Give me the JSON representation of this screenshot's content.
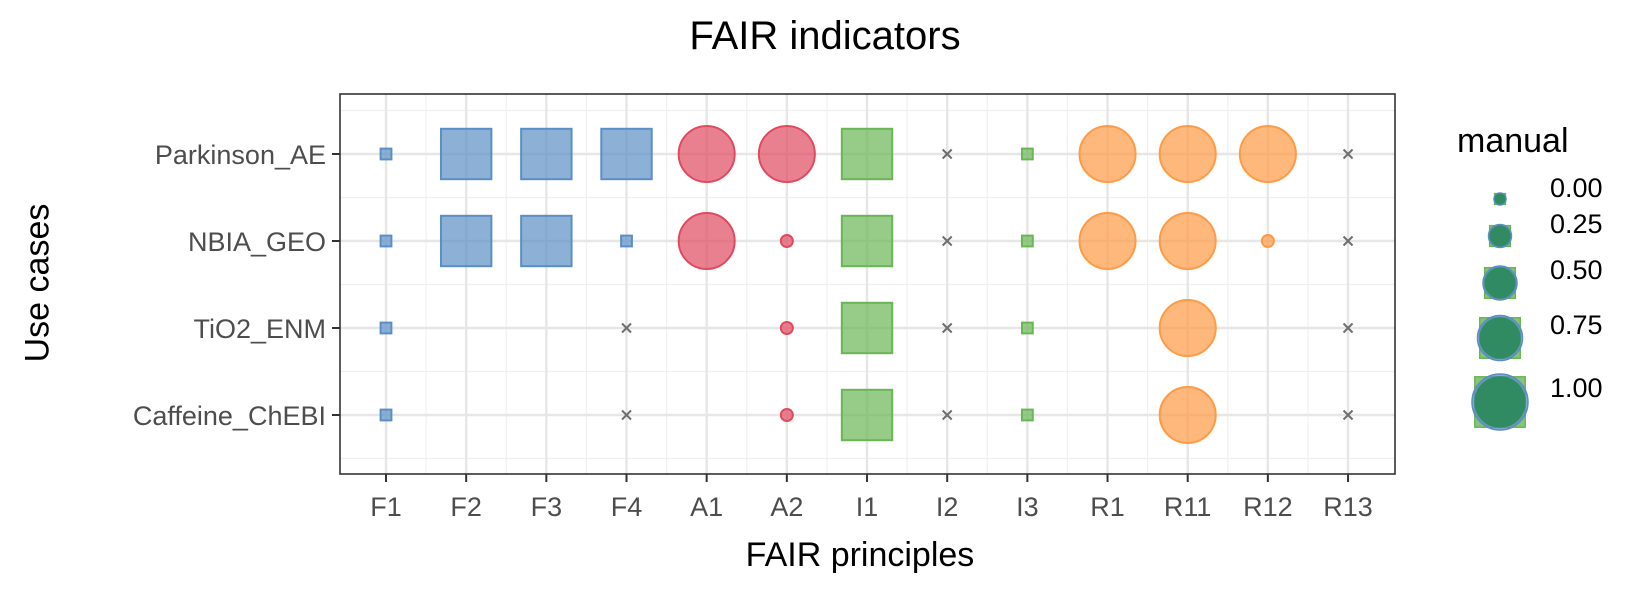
{
  "chart_data": {
    "type": "scatter",
    "title": "FAIR indicators",
    "xlabel": "FAIR principles",
    "ylabel": "Use cases",
    "categories_x": [
      "F1",
      "F2",
      "F3",
      "F4",
      "A1",
      "A2",
      "I1",
      "I2",
      "I3",
      "R1",
      "R11",
      "R12",
      "R13"
    ],
    "categories_y": [
      "Parkinson_AE",
      "NBIA_GEO",
      "TiO2_ENM",
      "Caffeine_ChEBI"
    ],
    "size_legend": {
      "title": "manual",
      "values": [
        "0.00",
        "0.25",
        "0.50",
        "0.75",
        "1.00"
      ]
    },
    "groups": {
      "F": {
        "shape": "square",
        "color": "#5B8EC4"
      },
      "A": {
        "shape": "circle",
        "color": "#E04A5F"
      },
      "I": {
        "shape": "square",
        "color": "#6AB556"
      },
      "R": {
        "shape": "circle",
        "color": "#FF9A45"
      },
      "none": {
        "shape": "cross",
        "color": "#6E6E6E"
      }
    },
    "points": [
      {
        "x": "F1",
        "y": "Parkinson_AE",
        "value": 0.0,
        "group": "F"
      },
      {
        "x": "F2",
        "y": "Parkinson_AE",
        "value": 1.0,
        "group": "F"
      },
      {
        "x": "F3",
        "y": "Parkinson_AE",
        "value": 1.0,
        "group": "F"
      },
      {
        "x": "F4",
        "y": "Parkinson_AE",
        "value": 1.0,
        "group": "F"
      },
      {
        "x": "A1",
        "y": "Parkinson_AE",
        "value": 1.0,
        "group": "A"
      },
      {
        "x": "A2",
        "y": "Parkinson_AE",
        "value": 1.0,
        "group": "A"
      },
      {
        "x": "I1",
        "y": "Parkinson_AE",
        "value": 1.0,
        "group": "I"
      },
      {
        "x": "I2",
        "y": "Parkinson_AE",
        "value": null,
        "group": "none"
      },
      {
        "x": "I3",
        "y": "Parkinson_AE",
        "value": 0.0,
        "group": "I"
      },
      {
        "x": "R1",
        "y": "Parkinson_AE",
        "value": 1.0,
        "group": "R"
      },
      {
        "x": "R11",
        "y": "Parkinson_AE",
        "value": 1.0,
        "group": "R"
      },
      {
        "x": "R12",
        "y": "Parkinson_AE",
        "value": 1.0,
        "group": "R"
      },
      {
        "x": "R13",
        "y": "Parkinson_AE",
        "value": null,
        "group": "none"
      },
      {
        "x": "F1",
        "y": "NBIA_GEO",
        "value": 0.0,
        "group": "F"
      },
      {
        "x": "F2",
        "y": "NBIA_GEO",
        "value": 1.0,
        "group": "F"
      },
      {
        "x": "F3",
        "y": "NBIA_GEO",
        "value": 1.0,
        "group": "F"
      },
      {
        "x": "F4",
        "y": "NBIA_GEO",
        "value": 0.0,
        "group": "F"
      },
      {
        "x": "A1",
        "y": "NBIA_GEO",
        "value": 1.0,
        "group": "A"
      },
      {
        "x": "A2",
        "y": "NBIA_GEO",
        "value": 0.0,
        "group": "A"
      },
      {
        "x": "I1",
        "y": "NBIA_GEO",
        "value": 1.0,
        "group": "I"
      },
      {
        "x": "I2",
        "y": "NBIA_GEO",
        "value": null,
        "group": "none"
      },
      {
        "x": "I3",
        "y": "NBIA_GEO",
        "value": 0.0,
        "group": "I"
      },
      {
        "x": "R1",
        "y": "NBIA_GEO",
        "value": 1.0,
        "group": "R"
      },
      {
        "x": "R11",
        "y": "NBIA_GEO",
        "value": 1.0,
        "group": "R"
      },
      {
        "x": "R12",
        "y": "NBIA_GEO",
        "value": 0.0,
        "group": "R"
      },
      {
        "x": "R13",
        "y": "NBIA_GEO",
        "value": null,
        "group": "none"
      },
      {
        "x": "F1",
        "y": "TiO2_ENM",
        "value": 0.0,
        "group": "F"
      },
      {
        "x": "F4",
        "y": "TiO2_ENM",
        "value": null,
        "group": "none"
      },
      {
        "x": "A2",
        "y": "TiO2_ENM",
        "value": 0.0,
        "group": "A"
      },
      {
        "x": "I1",
        "y": "TiO2_ENM",
        "value": 1.0,
        "group": "I"
      },
      {
        "x": "I2",
        "y": "TiO2_ENM",
        "value": null,
        "group": "none"
      },
      {
        "x": "I3",
        "y": "TiO2_ENM",
        "value": 0.0,
        "group": "I"
      },
      {
        "x": "R11",
        "y": "TiO2_ENM",
        "value": 1.0,
        "group": "R"
      },
      {
        "x": "R13",
        "y": "TiO2_ENM",
        "value": null,
        "group": "none"
      },
      {
        "x": "F1",
        "y": "Caffeine_ChEBI",
        "value": 0.0,
        "group": "F"
      },
      {
        "x": "F4",
        "y": "Caffeine_ChEBI",
        "value": null,
        "group": "none"
      },
      {
        "x": "A2",
        "y": "Caffeine_ChEBI",
        "value": 0.0,
        "group": "A"
      },
      {
        "x": "I1",
        "y": "Caffeine_ChEBI",
        "value": 1.0,
        "group": "I"
      },
      {
        "x": "I2",
        "y": "Caffeine_ChEBI",
        "value": null,
        "group": "none"
      },
      {
        "x": "I3",
        "y": "Caffeine_ChEBI",
        "value": 0.0,
        "group": "I"
      },
      {
        "x": "R11",
        "y": "Caffeine_ChEBI",
        "value": 1.0,
        "group": "R"
      },
      {
        "x": "R13",
        "y": "Caffeine_ChEBI",
        "value": null,
        "group": "none"
      }
    ],
    "grid": true,
    "legend_position": "right"
  }
}
